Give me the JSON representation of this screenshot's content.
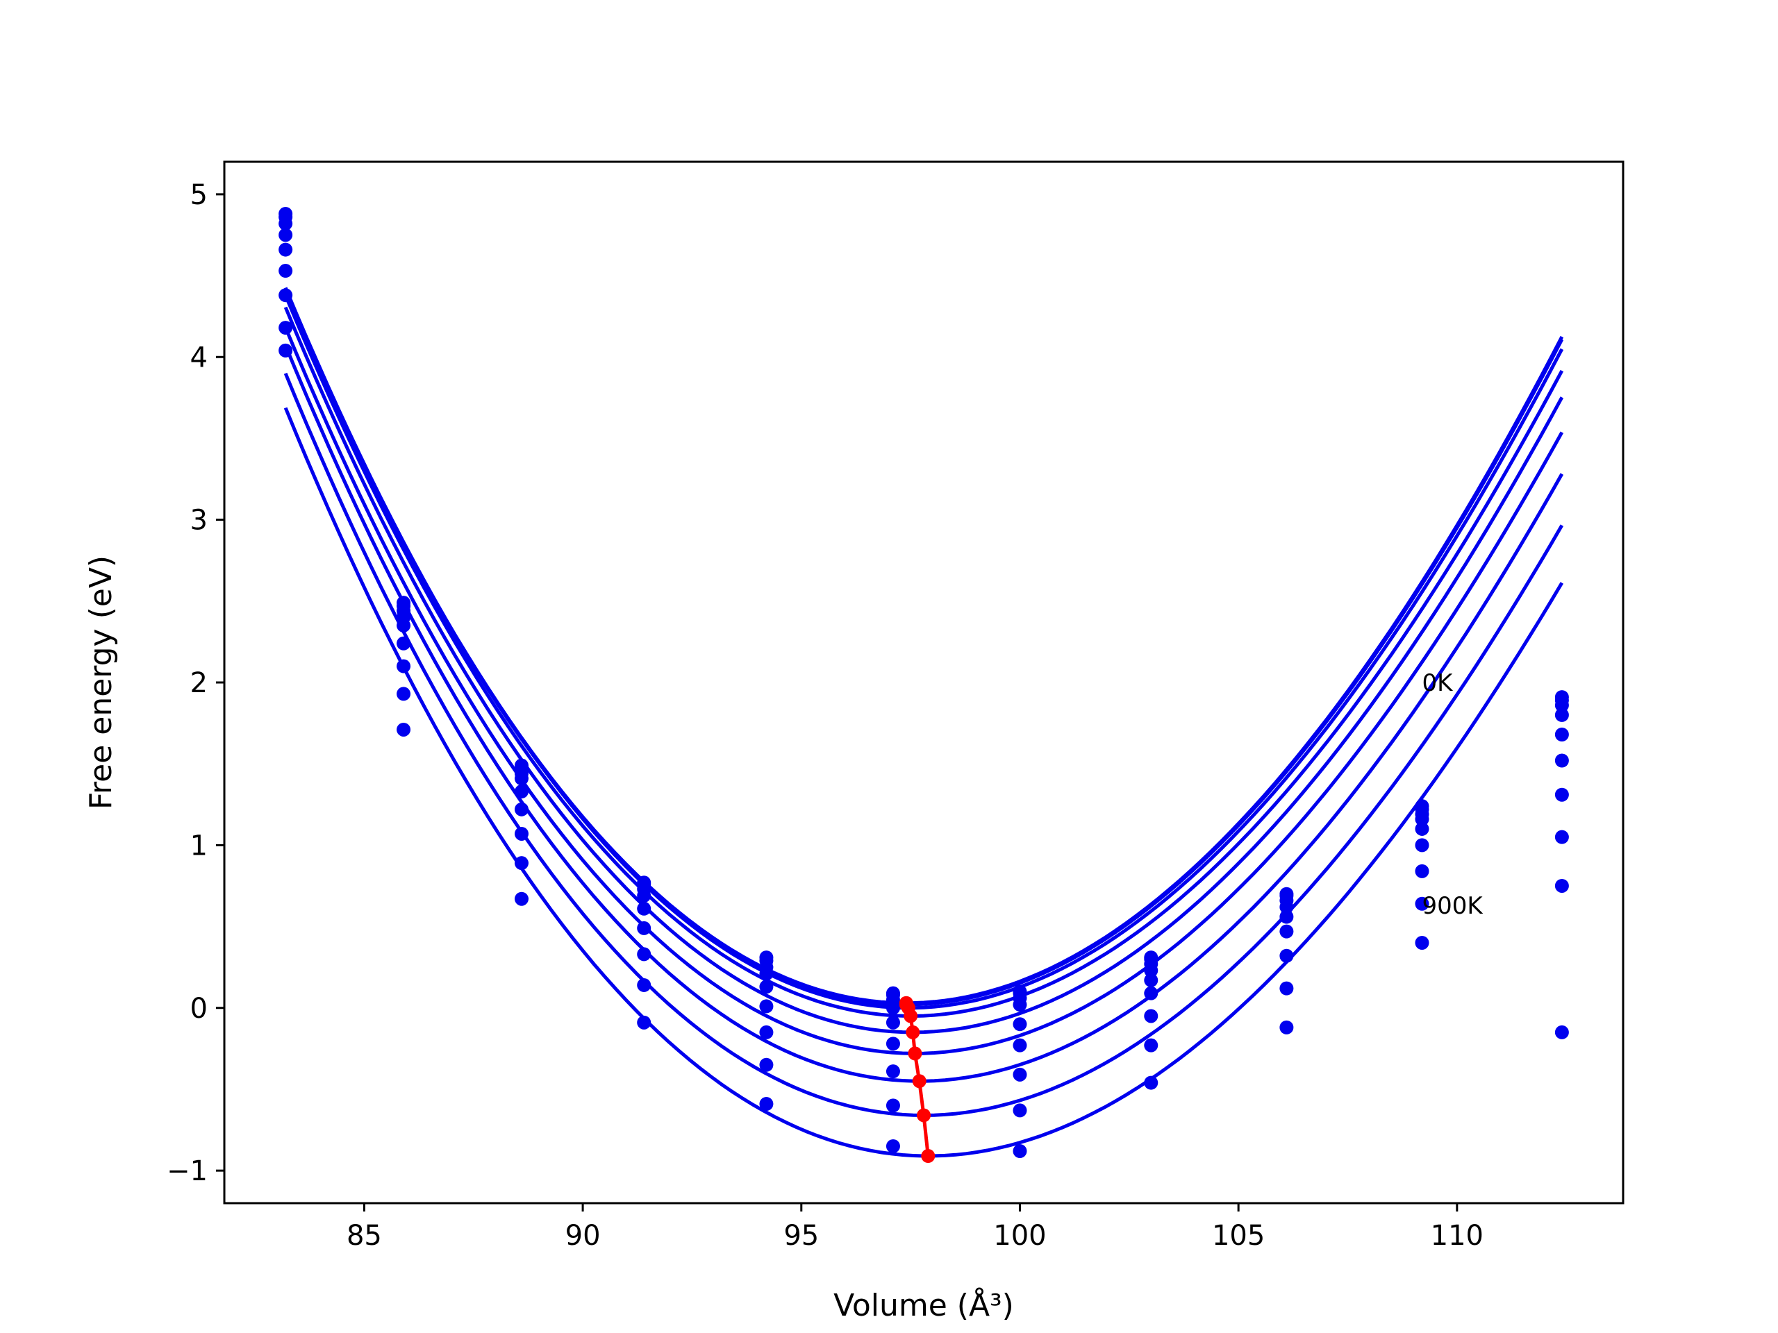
{
  "chart_data": {
    "type": "scatter",
    "xlabel": "Volume (Å³)",
    "ylabel": "Free energy (eV)",
    "xlim": [
      81.8,
      113.8
    ],
    "ylim": [
      -1.2,
      5.2
    ],
    "x_ticks": [
      85,
      90,
      95,
      100,
      105,
      110
    ],
    "y_ticks": [
      -1,
      0,
      1,
      2,
      3,
      4,
      5
    ],
    "x_tick_labels": [
      "85",
      "90",
      "95",
      "100",
      "105",
      "110"
    ],
    "y_tick_labels": [
      "−1",
      "0",
      "1",
      "2",
      "3",
      "4",
      "5"
    ],
    "grid": false,
    "legend": "none",
    "annotations": [
      {
        "text": "0K",
        "x": 109.2,
        "y": 2.0
      },
      {
        "text": "900K",
        "x": 109.2,
        "y": 0.63
      }
    ],
    "volumes": [
      83.2,
      85.9,
      88.6,
      91.4,
      94.2,
      97.1,
      100.0,
      103.0,
      106.1,
      109.2,
      112.4
    ],
    "fit_range": [
      83.2,
      112.4
    ],
    "colors": {
      "curves": "#0000ee",
      "minima": "#ff0000"
    },
    "series": [
      {
        "F0": 0.03,
        "V0": 97.4,
        "a": 0.02,
        "b": -0.00012,
        "points": [
          4.88,
          2.49,
          1.49,
          0.77,
          0.31,
          0.09,
          0.1,
          0.31,
          0.7,
          1.24,
          1.91
        ]
      },
      {
        "F0": 0.02,
        "V0": 97.4,
        "a": 0.02,
        "b": -0.000122,
        "points": [
          4.86,
          2.47,
          1.47,
          0.76,
          0.29,
          0.08,
          0.09,
          0.3,
          0.69,
          1.22,
          1.89
        ]
      },
      {
        "F0": 0.0,
        "V0": 97.45,
        "a": 0.02,
        "b": -0.000126,
        "points": [
          4.82,
          2.44,
          1.44,
          0.73,
          0.25,
          0.05,
          0.06,
          0.27,
          0.66,
          1.19,
          1.86
        ]
      },
      {
        "F0": -0.05,
        "V0": 97.5,
        "a": 0.0198,
        "b": -0.00013,
        "points": [
          4.75,
          2.4,
          1.41,
          0.69,
          0.21,
          0.0,
          0.02,
          0.23,
          0.62,
          1.16,
          1.8
        ]
      },
      {
        "F0": -0.15,
        "V0": 97.55,
        "a": 0.0197,
        "b": -0.000135,
        "points": [
          4.66,
          2.35,
          1.33,
          0.61,
          0.13,
          -0.09,
          -0.1,
          0.17,
          0.56,
          1.1,
          1.68
        ]
      },
      {
        "F0": -0.28,
        "V0": 97.6,
        "a": 0.0195,
        "b": -0.00014,
        "points": [
          4.53,
          2.24,
          1.22,
          0.49,
          0.01,
          -0.22,
          -0.23,
          0.09,
          0.47,
          1.0,
          1.52
        ]
      },
      {
        "F0": -0.45,
        "V0": 97.7,
        "a": 0.0194,
        "b": -0.000145,
        "points": [
          4.38,
          2.1,
          1.07,
          0.33,
          -0.15,
          -0.39,
          -0.41,
          -0.05,
          0.32,
          0.84,
          1.31
        ]
      },
      {
        "F0": -0.66,
        "V0": 97.8,
        "a": 0.0192,
        "b": -0.00015,
        "points": [
          4.18,
          1.93,
          0.89,
          0.14,
          -0.35,
          -0.6,
          -0.63,
          -0.23,
          0.12,
          0.64,
          1.05
        ]
      },
      {
        "F0": -0.91,
        "V0": 97.9,
        "a": 0.019,
        "b": -0.000155,
        "points": [
          4.04,
          1.71,
          0.67,
          -0.09,
          -0.59,
          -0.85,
          -0.88,
          -0.46,
          -0.12,
          0.4,
          0.75
        ]
      }
    ],
    "minima": {
      "x": [
        97.4,
        97.4,
        97.45,
        97.5,
        97.55,
        97.6,
        97.7,
        97.8,
        97.9
      ],
      "y": [
        0.03,
        0.02,
        0.0,
        -0.05,
        -0.15,
        -0.28,
        -0.45,
        -0.66,
        -0.91
      ]
    },
    "extra_points": [
      {
        "x": 112.4,
        "y": -0.15
      }
    ]
  }
}
